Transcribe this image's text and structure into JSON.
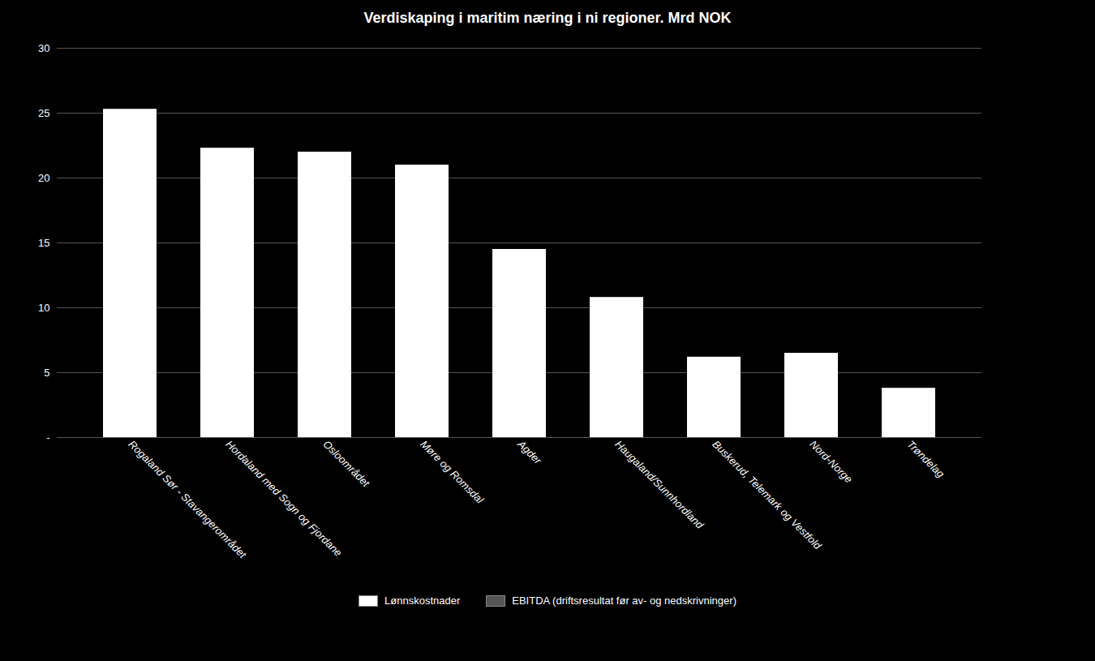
{
  "chart_data": {
    "type": "bar",
    "title": "Verdiskaping i maritim næring i ni regioner. Mrd NOK",
    "categories": [
      "Rogaland Sør - Stavangerområdet",
      "Hordaland med Sogn og Fjordane",
      "Osloområdet",
      "Møre og Romsdal",
      "Agder",
      "Haugaland/Sunnhordland",
      "Buskerud, Telemark og Vestfold",
      "Nord-Norge",
      "Trøndelag"
    ],
    "values": [
      25.3,
      22.3,
      22.0,
      21.0,
      14.5,
      10.8,
      6.2,
      6.5,
      3.8
    ],
    "color": "#ffffff",
    "ylim": [
      0,
      30
    ],
    "yticks": [
      {
        "value": 0,
        "label": "-"
      },
      5,
      10,
      15,
      20,
      25,
      30
    ],
    "grid": true,
    "legend": "bottom",
    "legend_entries": [
      {
        "name": "Lønnskostnader",
        "color": "#ffffff"
      },
      {
        "name": "EBITDA (driftsresultat før av- og nedskrivninger)",
        "color": "#555555"
      }
    ]
  }
}
